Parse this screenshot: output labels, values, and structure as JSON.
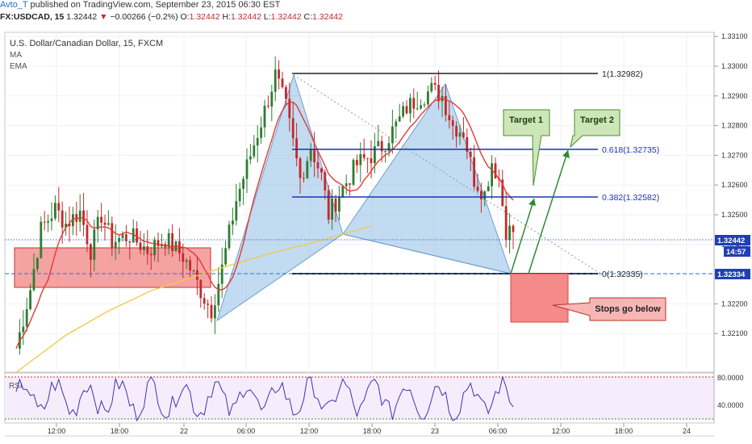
{
  "header": {
    "author": "Avto_T",
    "published": " published on TradingView.com, September 23, 2015 06:30 EST",
    "symbol": "FX:USDCAD, 15",
    "last": "1.32442",
    "arrow": "▼",
    "change": "−0.00266 (−0.2%)",
    "o_label": "O:",
    "o": "1.32442",
    "h_label": "H:",
    "h": "1.32442",
    "l_label": "L:",
    "l": "1.32442",
    "c_label": "C:",
    "c": "1.32442"
  },
  "pane": {
    "title": "U.S. Dollar/Canadian Dollar, 15, FXCM",
    "ma_label": "MA",
    "ema_label": "EMA",
    "rsi_label": "RSI"
  },
  "colors": {
    "bull": "#2e7d32",
    "bear": "#c62828",
    "ma": "#e53935",
    "ema": "#f2c94c",
    "fib": "#1e2fbf",
    "zone": "#f28b8b",
    "pattern": "#9cc3e5",
    "arrow": "#2e8b2e",
    "rsi": "#3b35b5",
    "rsi_band": "#f5e9fb"
  },
  "fib_labels": [
    "1(1.32982)",
    "0.618(1.32735)",
    "0.382(1.32582)",
    "0(1.32335)"
  ],
  "annotations": {
    "target1": "Target 1",
    "target2": "Target 2",
    "stops": "Stops go below"
  },
  "price_badges": {
    "last": "1.32442",
    "countdown": "14:57",
    "level": "1.32334"
  },
  "chart_data": {
    "type": "candlestick",
    "x_ticks": [
      "12:00",
      "18:00",
      "22",
      "06:00",
      "12:00",
      "18:00",
      "23",
      "06:00",
      "12:00",
      "18:00",
      "24"
    ],
    "y_ticks": [
      "1.33100",
      "1.33000",
      "1.32900",
      "1.32800",
      "1.32700",
      "1.32600",
      "1.32500",
      "1.32400",
      "1.32300",
      "1.32200",
      "1.32100"
    ],
    "ylim": [
      1.3203,
      1.3312
    ],
    "fib_levels": [
      {
        "label": "1(1.32982)",
        "value": 1.32982
      },
      {
        "label": "0.618(1.32735)",
        "value": 1.32735
      },
      {
        "label": "0.382(1.32582)",
        "value": 1.32582
      },
      {
        "label": "0(1.32335)",
        "value": 1.32335
      }
    ],
    "last_price": 1.32442,
    "rsi_ticks": [
      "80.0000",
      "40.0000"
    ],
    "rsi_levels": [
      70,
      30
    ],
    "rsi_ylim": [
      20,
      85
    ],
    "approx_close_path": [
      [
        0,
        1.3205
      ],
      [
        4,
        1.3225
      ],
      [
        7,
        1.3245
      ],
      [
        11,
        1.3252
      ],
      [
        14,
        1.3247
      ],
      [
        18,
        1.3251
      ],
      [
        21,
        1.3238
      ],
      [
        24,
        1.325
      ],
      [
        27,
        1.3241
      ],
      [
        32,
        1.3243
      ],
      [
        37,
        1.3238
      ],
      [
        42,
        1.3242
      ],
      [
        47,
        1.3236
      ],
      [
        49,
        1.3232
      ],
      [
        53,
        1.3222
      ],
      [
        55,
        1.3218
      ],
      [
        58,
        1.3232
      ],
      [
        62,
        1.3255
      ],
      [
        66,
        1.327
      ],
      [
        70,
        1.3285
      ],
      [
        73,
        1.3297
      ],
      [
        76,
        1.3286
      ],
      [
        80,
        1.3262
      ],
      [
        83,
        1.3273
      ],
      [
        86,
        1.3263
      ],
      [
        88,
        1.325
      ],
      [
        92,
        1.3259
      ],
      [
        96,
        1.3267
      ],
      [
        100,
        1.327
      ],
      [
        103,
        1.3273
      ],
      [
        107,
        1.328
      ],
      [
        110,
        1.3286
      ],
      [
        113,
        1.3289
      ],
      [
        117,
        1.3292
      ],
      [
        120,
        1.329
      ],
      [
        123,
        1.328
      ],
      [
        126,
        1.3278
      ],
      [
        129,
        1.3262
      ],
      [
        132,
        1.3257
      ],
      [
        134,
        1.3268
      ],
      [
        136,
        1.3262
      ],
      [
        138,
        1.3245
      ],
      [
        140,
        1.3244
      ]
    ]
  }
}
